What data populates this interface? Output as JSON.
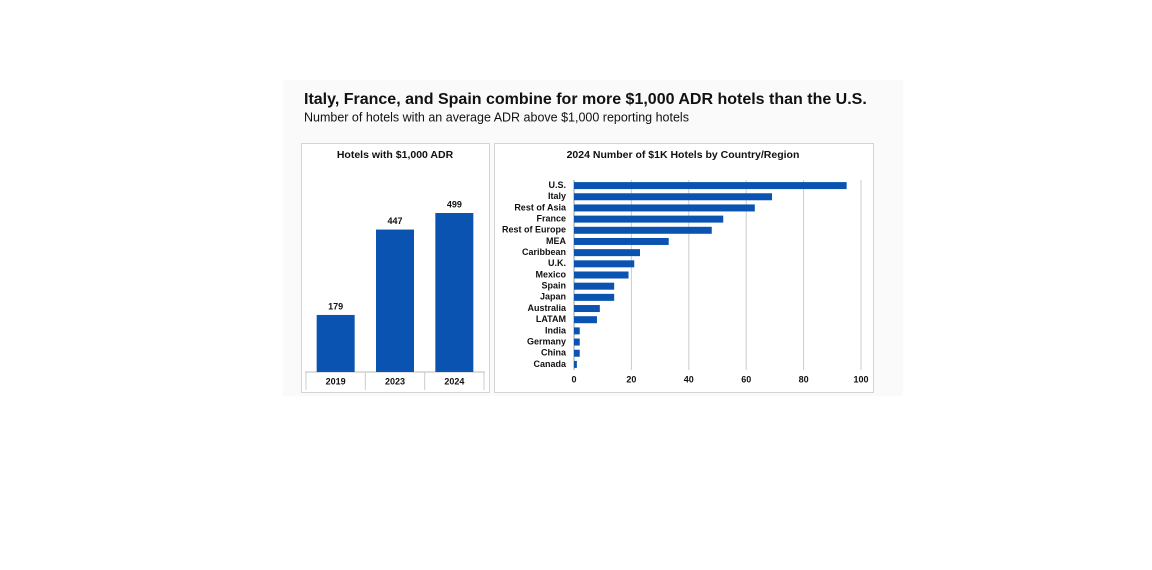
{
  "title": "Italy, France, and Spain combine for more $1,000 ADR hotels than the U.S.",
  "subtitle": "Number of hotels with an average ADR above $1,000 reporting hotels",
  "chart_data": [
    {
      "type": "bar",
      "orientation": "vertical",
      "title": "Hotels with $1,000 ADR",
      "categories": [
        "2019",
        "2023",
        "2024"
      ],
      "values": [
        179,
        447,
        499
      ],
      "color": "#0a53b0",
      "data_labels": true
    },
    {
      "type": "bar",
      "orientation": "horizontal",
      "title": "2024 Number of $1K Hotels by Country/Region",
      "categories": [
        "U.S.",
        "Italy",
        "Rest of Asia",
        "France",
        "Rest of Europe",
        "MEA",
        "Caribbean",
        "U.K.",
        "Mexico",
        "Spain",
        "Japan",
        "Australia",
        "LATAM",
        "India",
        "Germany",
        "China",
        "Canada"
      ],
      "values": [
        95,
        69,
        63,
        52,
        48,
        33,
        23,
        21,
        19,
        14,
        14,
        9,
        8,
        2,
        2,
        2,
        1
      ],
      "color": "#0a53b0",
      "xlim": [
        0,
        100
      ],
      "xticks": [
        0,
        20,
        40,
        60,
        80,
        100
      ],
      "grid": true
    }
  ]
}
